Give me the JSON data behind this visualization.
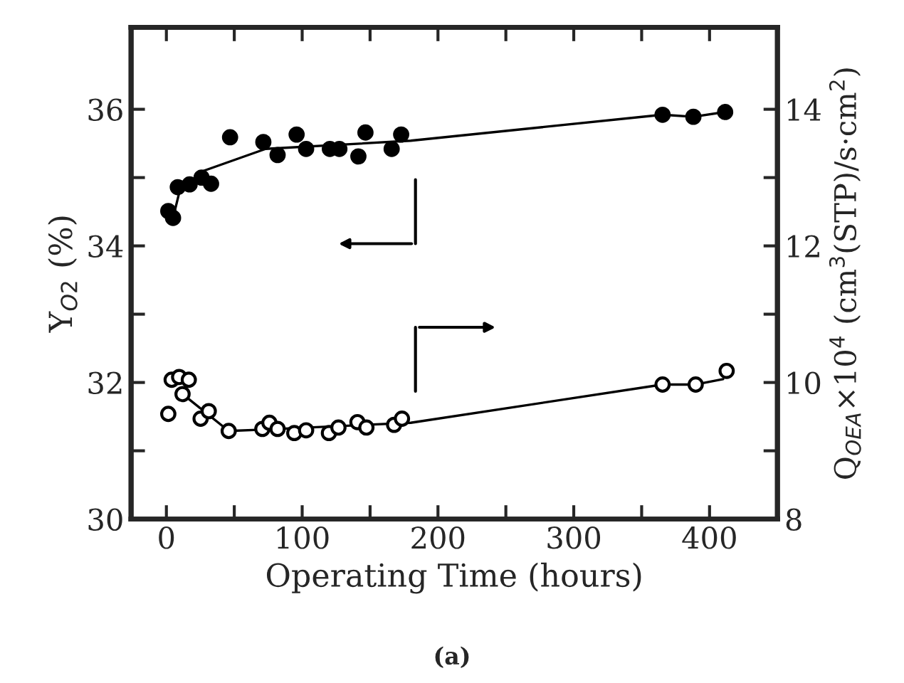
{
  "chart_data": {
    "type": "scatter",
    "xlabel": "Operating Time (hours)",
    "ylabel": "Y$_{O2}$ (%)",
    "y2label": "Q$_{OEA}$×10$^{4}$ (cm$^{3}$(STP)/s·cm$^{2}$)",
    "annotations": [
      "(a)"
    ],
    "xlim": [
      -26,
      450
    ],
    "xticks": [
      0,
      {
        "value": 50,
        "label": null
      },
      100,
      {
        "value": 150,
        "label": null
      },
      200,
      {
        "value": 250,
        "label": null
      },
      300,
      {
        "value": 350,
        "label": null
      },
      400
    ],
    "ylim": [
      30,
      37.2
    ],
    "yticks": [
      30,
      {
        "value": 31,
        "label": null
      },
      32,
      {
        "value": 33,
        "label": null
      },
      34,
      {
        "value": 35,
        "label": null
      },
      36
    ],
    "y2lim": [
      8,
      15.2
    ],
    "y2ticks": [
      8,
      {
        "value": 9,
        "label": null
      },
      10,
      {
        "value": 11,
        "label": null
      },
      12,
      {
        "value": 13,
        "label": null
      },
      14
    ],
    "grid": false,
    "legend": false,
    "series": [
      {
        "axis": "y",
        "marker": "circle",
        "color": "#000000",
        "x": [
          1.4,
          4.9,
          8.4,
          17.1,
          25.9,
          32.9,
          46.9,
          71.4,
          81.9,
          95.9,
          102.9,
          120.4,
          127.4,
          141.4,
          146.6,
          165.9,
          172.9,
          365.4,
          388.1,
          411.5
        ],
        "values": [
          34.51,
          34.41,
          34.86,
          34.9,
          35.0,
          34.91,
          35.59,
          35.52,
          35.33,
          35.63,
          35.42,
          35.42,
          35.42,
          35.31,
          35.66,
          35.42,
          35.63,
          35.92,
          35.89,
          35.96
        ]
      },
      {
        "type": "line",
        "axis": "y",
        "line_style": "solid",
        "color": "#000000",
        "x": [
          4.9,
          10.1,
          27.6,
          73.1,
          179.9,
          365.4,
          388.1,
          411.5
        ],
        "values": [
          34.41,
          34.83,
          35.1,
          35.42,
          35.54,
          35.92,
          35.89,
          35.96
        ]
      },
      {
        "axis": "y2",
        "marker": "circle",
        "color": "#000000",
        "x": [
          1.4,
          3.9,
          9.4,
          16.5,
          11.9,
          25.2,
          31.2,
          45.9,
          70.7,
          75.9,
          81.9,
          94.2,
          102.9,
          119.7,
          126.7,
          140.7,
          147.3,
          167.7,
          173.5,
          365.4,
          389.8,
          412.6
        ],
        "values": [
          9.54,
          10.04,
          10.08,
          10.04,
          9.83,
          9.47,
          9.58,
          9.29,
          9.32,
          9.41,
          9.32,
          9.26,
          9.3,
          9.26,
          9.34,
          9.42,
          9.34,
          9.38,
          9.47,
          9.97,
          9.97,
          10.17
        ]
      },
      {
        "type": "line",
        "axis": "y2",
        "line_style": "solid",
        "color": "#000000",
        "x": [
          11.9,
          45.9,
          70.7,
          179.9,
          365.4,
          389.8,
          410.0
        ],
        "values": [
          9.83,
          9.29,
          9.31,
          9.41,
          9.97,
          9.97,
          10.05
        ]
      }
    ]
  }
}
